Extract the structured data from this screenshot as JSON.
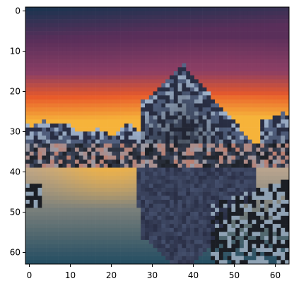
{
  "image": {
    "description_kind": "pixelated landscape rendered on matplotlib-style axes",
    "grid_size": [
      64,
      64
    ],
    "palette": {
      "sky_top": "#1c3450",
      "sky_purple": "#5a2f5a",
      "sky_magenta": "#8a3e64",
      "horizon_orange": "#e85a2a",
      "horizon_yellow": "#f6b33a",
      "mountain_dark": "#2a2f46",
      "mountain_mid": "#556485",
      "mountain_light": "#9fb2cc",
      "water_top": "#b8a48e",
      "water_mid": "#5f7f95",
      "water_deep": "#1f4a60",
      "rock_dark": "#1b1e24",
      "rock_light": "#8fa2b4"
    }
  },
  "axes": {
    "x_ticks": [
      "0",
      "10",
      "20",
      "30",
      "40",
      "50",
      "60"
    ],
    "y_ticks": [
      "0",
      "10",
      "20",
      "30",
      "40",
      "50",
      "60"
    ]
  }
}
